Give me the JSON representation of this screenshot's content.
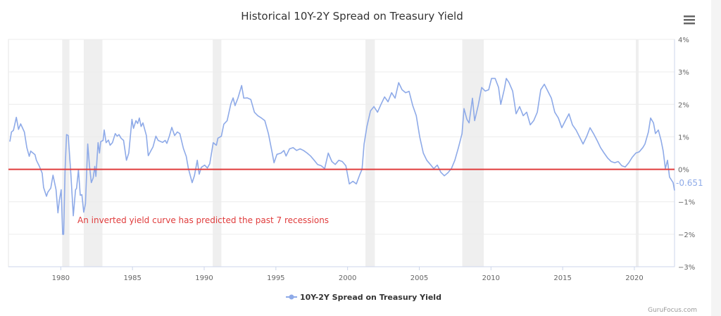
{
  "chart_data": {
    "type": "line",
    "title": "Historical 10Y-2Y Spread on Treasury Yield",
    "xlabel": "",
    "ylabel": "",
    "xlim": [
      1976.35,
      2022.8
    ],
    "ylim": [
      -3,
      4
    ],
    "x_ticks": [
      1980,
      1985,
      1990,
      1995,
      2000,
      2005,
      2010,
      2015,
      2020
    ],
    "x_tick_labels": [
      "1980",
      "1985",
      "1990",
      "1995",
      "2000",
      "2005",
      "2010",
      "2015",
      "2020"
    ],
    "y_ticks": [
      4,
      3,
      2,
      1,
      0,
      -1,
      -2,
      -3
    ],
    "y_tick_labels": [
      "4%",
      "3%",
      "2%",
      "1%",
      "0%",
      "−1%",
      "−2%",
      "−3%"
    ],
    "grid": true,
    "legend": {
      "position": "bottom-center",
      "entries": [
        "10Y-2Y Spread on Treasury Yield"
      ]
    },
    "last_value_label": "-0.651",
    "annotation": "An inverted yield curve has predicted the past 7 recessions",
    "reference_line": 0,
    "recessions": [
      [
        1980.1,
        1980.6
      ],
      [
        1981.6,
        1982.9
      ],
      [
        1990.6,
        1991.2
      ],
      [
        2001.25,
        2001.9
      ],
      [
        2008.0,
        2009.5
      ],
      [
        2020.1,
        2020.3
      ]
    ],
    "series": [
      {
        "name": "10Y-2Y Spread on Treasury Yield",
        "color": "#8eaae8",
        "points": [
          [
            1976.45,
            0.85
          ],
          [
            1976.56,
            1.15
          ],
          [
            1976.7,
            1.2
          ],
          [
            1976.9,
            1.6
          ],
          [
            1977.05,
            1.23
          ],
          [
            1977.2,
            1.4
          ],
          [
            1977.46,
            1.15
          ],
          [
            1977.63,
            0.67
          ],
          [
            1977.8,
            0.4
          ],
          [
            1977.9,
            0.56
          ],
          [
            1978.2,
            0.45
          ],
          [
            1978.3,
            0.28
          ],
          [
            1978.5,
            0.1
          ],
          [
            1978.7,
            -0.12
          ],
          [
            1978.8,
            -0.56
          ],
          [
            1979.0,
            -0.83
          ],
          [
            1979.1,
            -0.7
          ],
          [
            1979.3,
            -0.58
          ],
          [
            1979.46,
            -0.18
          ],
          [
            1979.67,
            -0.63
          ],
          [
            1979.8,
            -1.34
          ],
          [
            1979.9,
            -0.95
          ],
          [
            1980.03,
            -0.63
          ],
          [
            1980.13,
            -2.0
          ],
          [
            1980.2,
            -2.0
          ],
          [
            1980.3,
            -0.05
          ],
          [
            1980.4,
            1.07
          ],
          [
            1980.52,
            1.04
          ],
          [
            1980.7,
            -0.13
          ],
          [
            1980.87,
            -1.43
          ],
          [
            1981.03,
            -0.63
          ],
          [
            1981.1,
            -0.59
          ],
          [
            1981.23,
            -0.02
          ],
          [
            1981.36,
            -0.8
          ],
          [
            1981.47,
            -0.78
          ],
          [
            1981.6,
            -1.32
          ],
          [
            1981.72,
            -1.06
          ],
          [
            1981.88,
            0.78
          ],
          [
            1982.0,
            0.1
          ],
          [
            1982.13,
            -0.41
          ],
          [
            1982.26,
            -0.26
          ],
          [
            1982.37,
            0.09
          ],
          [
            1982.45,
            -0.22
          ],
          [
            1982.6,
            0.82
          ],
          [
            1982.7,
            0.5
          ],
          [
            1982.78,
            0.85
          ],
          [
            1982.95,
            0.89
          ],
          [
            1983.03,
            1.21
          ],
          [
            1983.16,
            0.82
          ],
          [
            1983.32,
            0.9
          ],
          [
            1983.44,
            0.74
          ],
          [
            1983.6,
            0.82
          ],
          [
            1983.8,
            1.1
          ],
          [
            1983.93,
            1.02
          ],
          [
            1984.06,
            1.07
          ],
          [
            1984.2,
            0.96
          ],
          [
            1984.38,
            0.89
          ],
          [
            1984.58,
            0.28
          ],
          [
            1984.74,
            0.5
          ],
          [
            1984.96,
            1.54
          ],
          [
            1985.07,
            1.26
          ],
          [
            1985.24,
            1.5
          ],
          [
            1985.36,
            1.41
          ],
          [
            1985.48,
            1.58
          ],
          [
            1985.6,
            1.32
          ],
          [
            1985.73,
            1.43
          ],
          [
            1985.97,
            1.04
          ],
          [
            1986.1,
            0.42
          ],
          [
            1986.27,
            0.56
          ],
          [
            1986.43,
            0.69
          ],
          [
            1986.63,
            1.02
          ],
          [
            1986.79,
            0.89
          ],
          [
            1987.1,
            0.83
          ],
          [
            1987.28,
            0.89
          ],
          [
            1987.4,
            0.8
          ],
          [
            1987.57,
            1.02
          ],
          [
            1987.74,
            1.29
          ],
          [
            1987.94,
            1.04
          ],
          [
            1988.13,
            1.15
          ],
          [
            1988.3,
            1.1
          ],
          [
            1988.55,
            0.64
          ],
          [
            1988.75,
            0.4
          ],
          [
            1988.9,
            0.02
          ],
          [
            1989.16,
            -0.41
          ],
          [
            1989.32,
            -0.2
          ],
          [
            1989.52,
            0.28
          ],
          [
            1989.65,
            -0.15
          ],
          [
            1989.8,
            0.06
          ],
          [
            1990.03,
            0.13
          ],
          [
            1990.22,
            0.04
          ],
          [
            1990.39,
            0.17
          ],
          [
            1990.63,
            0.82
          ],
          [
            1990.85,
            0.74
          ],
          [
            1990.96,
            0.96
          ],
          [
            1991.2,
            1.02
          ],
          [
            1991.37,
            1.39
          ],
          [
            1991.6,
            1.5
          ],
          [
            1991.86,
            2.02
          ],
          [
            1992.02,
            2.2
          ],
          [
            1992.15,
            1.96
          ],
          [
            1992.35,
            2.19
          ],
          [
            1992.61,
            2.58
          ],
          [
            1992.76,
            2.19
          ],
          [
            1993.01,
            2.2
          ],
          [
            1993.25,
            2.15
          ],
          [
            1993.5,
            1.76
          ],
          [
            1993.74,
            1.65
          ],
          [
            1993.99,
            1.58
          ],
          [
            1994.23,
            1.5
          ],
          [
            1994.48,
            1.1
          ],
          [
            1994.72,
            0.56
          ],
          [
            1994.87,
            0.2
          ],
          [
            1995.07,
            0.46
          ],
          [
            1995.36,
            0.5
          ],
          [
            1995.56,
            0.58
          ],
          [
            1995.71,
            0.41
          ],
          [
            1995.95,
            0.63
          ],
          [
            1996.2,
            0.67
          ],
          [
            1996.44,
            0.58
          ],
          [
            1996.69,
            0.63
          ],
          [
            1996.93,
            0.58
          ],
          [
            1997.18,
            0.5
          ],
          [
            1997.42,
            0.41
          ],
          [
            1997.67,
            0.28
          ],
          [
            1997.91,
            0.15
          ],
          [
            1998.16,
            0.11
          ],
          [
            1998.4,
            0.02
          ],
          [
            1998.65,
            0.5
          ],
          [
            1998.9,
            0.24
          ],
          [
            1999.14,
            0.15
          ],
          [
            1999.39,
            0.28
          ],
          [
            1999.63,
            0.24
          ],
          [
            1999.88,
            0.11
          ],
          [
            2000.12,
            -0.45
          ],
          [
            2000.37,
            -0.37
          ],
          [
            2000.61,
            -0.45
          ],
          [
            2000.86,
            -0.15
          ],
          [
            2001.01,
            0.0
          ],
          [
            2001.15,
            0.78
          ],
          [
            2001.35,
            1.32
          ],
          [
            2001.6,
            1.8
          ],
          [
            2001.84,
            1.93
          ],
          [
            2002.09,
            1.76
          ],
          [
            2002.33,
            2.0
          ],
          [
            2002.58,
            2.23
          ],
          [
            2002.82,
            2.08
          ],
          [
            2003.07,
            2.36
          ],
          [
            2003.31,
            2.19
          ],
          [
            2003.56,
            2.67
          ],
          [
            2003.8,
            2.45
          ],
          [
            2004.05,
            2.36
          ],
          [
            2004.29,
            2.4
          ],
          [
            2004.54,
            1.97
          ],
          [
            2004.79,
            1.65
          ],
          [
            2005.03,
            1.0
          ],
          [
            2005.28,
            0.5
          ],
          [
            2005.52,
            0.28
          ],
          [
            2005.77,
            0.15
          ],
          [
            2006.01,
            0.02
          ],
          [
            2006.26,
            0.13
          ],
          [
            2006.5,
            -0.09
          ],
          [
            2006.75,
            -0.2
          ],
          [
            2006.99,
            -0.11
          ],
          [
            2007.24,
            0.02
          ],
          [
            2007.48,
            0.28
          ],
          [
            2007.73,
            0.67
          ],
          [
            2007.98,
            1.1
          ],
          [
            2008.12,
            1.87
          ],
          [
            2008.32,
            1.54
          ],
          [
            2008.47,
            1.43
          ],
          [
            2008.71,
            2.19
          ],
          [
            2008.86,
            1.5
          ],
          [
            2009.11,
            1.97
          ],
          [
            2009.35,
            2.52
          ],
          [
            2009.6,
            2.41
          ],
          [
            2009.84,
            2.45
          ],
          [
            2010.04,
            2.8
          ],
          [
            2010.29,
            2.8
          ],
          [
            2010.53,
            2.52
          ],
          [
            2010.68,
            2.0
          ],
          [
            2010.92,
            2.45
          ],
          [
            2011.07,
            2.8
          ],
          [
            2011.26,
            2.67
          ],
          [
            2011.51,
            2.41
          ],
          [
            2011.75,
            1.71
          ],
          [
            2012.0,
            1.93
          ],
          [
            2012.25,
            1.65
          ],
          [
            2012.49,
            1.76
          ],
          [
            2012.74,
            1.37
          ],
          [
            2012.98,
            1.5
          ],
          [
            2013.23,
            1.76
          ],
          [
            2013.47,
            2.45
          ],
          [
            2013.72,
            2.62
          ],
          [
            2013.96,
            2.41
          ],
          [
            2014.21,
            2.19
          ],
          [
            2014.45,
            1.76
          ],
          [
            2014.7,
            1.58
          ],
          [
            2014.94,
            1.28
          ],
          [
            2015.19,
            1.5
          ],
          [
            2015.44,
            1.71
          ],
          [
            2015.68,
            1.37
          ],
          [
            2015.93,
            1.21
          ],
          [
            2016.17,
            1.0
          ],
          [
            2016.42,
            0.78
          ],
          [
            2016.66,
            1.0
          ],
          [
            2016.91,
            1.28
          ],
          [
            2017.15,
            1.1
          ],
          [
            2017.4,
            0.89
          ],
          [
            2017.64,
            0.67
          ],
          [
            2017.89,
            0.5
          ],
          [
            2018.13,
            0.35
          ],
          [
            2018.38,
            0.24
          ],
          [
            2018.63,
            0.2
          ],
          [
            2018.87,
            0.24
          ],
          [
            2019.12,
            0.11
          ],
          [
            2019.36,
            0.07
          ],
          [
            2019.61,
            0.2
          ],
          [
            2019.85,
            0.37
          ],
          [
            2020.1,
            0.5
          ],
          [
            2020.34,
            0.54
          ],
          [
            2020.59,
            0.67
          ],
          [
            2020.74,
            0.78
          ],
          [
            2020.98,
            1.15
          ],
          [
            2021.13,
            1.58
          ],
          [
            2021.33,
            1.43
          ],
          [
            2021.47,
            1.1
          ],
          [
            2021.67,
            1.21
          ],
          [
            2021.86,
            0.89
          ],
          [
            2022.01,
            0.56
          ],
          [
            2022.16,
            0.02
          ],
          [
            2022.31,
            0.28
          ],
          [
            2022.45,
            -0.24
          ],
          [
            2022.7,
            -0.41
          ],
          [
            2022.8,
            -0.651
          ]
        ]
      }
    ]
  },
  "credit": "GuruFocus.com",
  "menu_icon": "hamburger-menu-icon",
  "colors": {
    "line": "#8eaae8",
    "zero_line": "#e03c3c",
    "annotation": "#e03c3c",
    "recession": "#efefef"
  }
}
